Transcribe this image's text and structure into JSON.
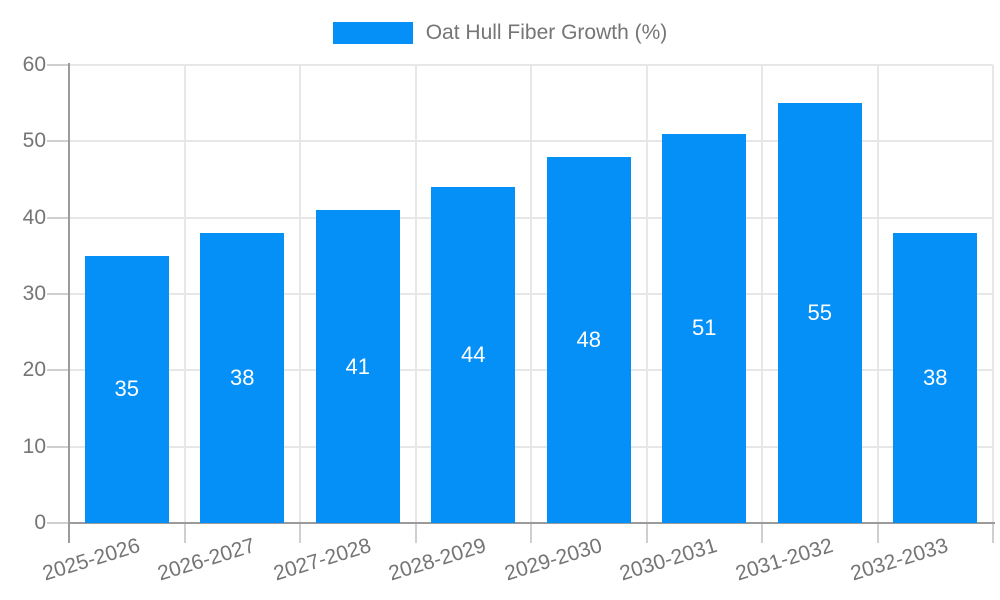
{
  "chart_data": {
    "type": "bar",
    "title": "",
    "legend": {
      "label": "Oat Hull Fiber Growth (%)",
      "position": "top"
    },
    "categories": [
      "2025-2026",
      "2026-2027",
      "2027-2028",
      "2028-2029",
      "2029-2030",
      "2030-2031",
      "2031-2032",
      "2032-2033"
    ],
    "series": [
      {
        "name": "Oat Hull Fiber Growth (%)",
        "values": [
          35,
          38,
          41,
          44,
          48,
          51,
          55,
          38
        ]
      }
    ],
    "value_labels_shown": true,
    "xlabel": "",
    "ylabel": "",
    "ylim": [
      0,
      60
    ],
    "yticks": [
      0,
      10,
      20,
      30,
      40,
      50,
      60
    ],
    "grid": true,
    "colors": {
      "bar": "#0590f8",
      "grid": "#e7e7e7",
      "tick": "#cfcfcf",
      "axis": "#9b9b9b",
      "label_text": "#757575",
      "value_text": "#ffffff"
    }
  }
}
